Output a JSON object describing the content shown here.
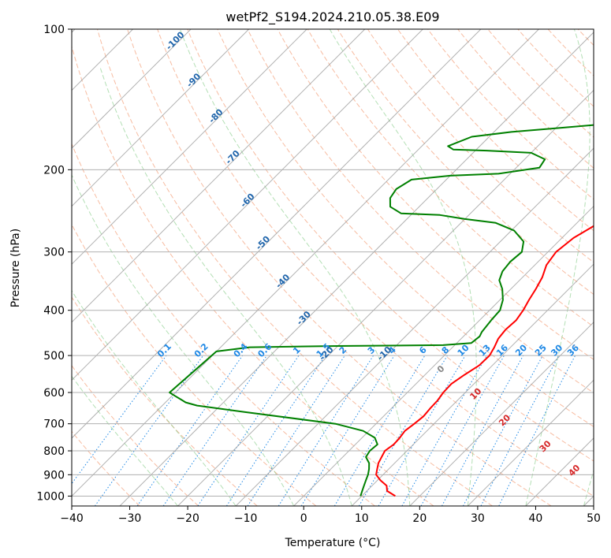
{
  "chart_data": {
    "type": "line",
    "subtype": "skew-t log-p diagram",
    "title": "wetPf2_S194.2024.210.05.38.E09",
    "xlabel": "Temperature (°C)",
    "ylabel": "Pressure (hPa)",
    "xlim": [
      -40,
      50
    ],
    "ylim": [
      1050,
      100
    ],
    "y_scale": "log",
    "x_ticks": [
      -40,
      -30,
      -20,
      -10,
      0,
      10,
      20,
      30,
      40,
      50
    ],
    "y_ticks": [
      1000,
      900,
      800,
      700,
      600,
      500,
      400,
      300,
      200,
      100
    ],
    "grid": true,
    "colors": {
      "temperature": "#ff0000",
      "dewpoint": "#008000",
      "dry_adiabats": "#f4a582",
      "moist_adiabats": "#74c476",
      "mixing_ratio": "#1e88e5",
      "isotherms": "#9e9e9e"
    },
    "series": [
      {
        "points": [
          [
            15.8,
            1000
          ],
          [
            13.5,
            975
          ],
          [
            12.5,
            950
          ],
          [
            10.5,
            925
          ],
          [
            8.8,
            900
          ],
          [
            8.0,
            875
          ],
          [
            7.2,
            850
          ],
          [
            6.7,
            825
          ],
          [
            6.2,
            800
          ],
          [
            6.6,
            775
          ],
          [
            6.5,
            750
          ],
          [
            6.2,
            725
          ],
          [
            6.6,
            700
          ],
          [
            6.9,
            675
          ],
          [
            6.7,
            650
          ],
          [
            6.6,
            625
          ],
          [
            6.2,
            600
          ],
          [
            6.1,
            575
          ],
          [
            6.8,
            550
          ],
          [
            7.7,
            525
          ],
          [
            7.8,
            500
          ],
          [
            7.2,
            480
          ],
          [
            6.4,
            460
          ],
          [
            6.1,
            440
          ],
          [
            6.3,
            420
          ],
          [
            5.8,
            400
          ],
          [
            5.0,
            380
          ],
          [
            4.3,
            360
          ],
          [
            3.4,
            340
          ],
          [
            2.0,
            320
          ],
          [
            1.4,
            300
          ],
          [
            2.0,
            280
          ],
          [
            3.8,
            260
          ],
          [
            6.2,
            240
          ],
          [
            8.5,
            220
          ],
          [
            9.4,
            200
          ],
          [
            11.6,
            180
          ],
          [
            14.5,
            160
          ],
          [
            16.5,
            140
          ],
          [
            18.5,
            125
          ],
          [
            20.5,
            110
          ],
          [
            22.0,
            100
          ]
        ]
      },
      {
        "points": [
          [
            9.8,
            1000
          ],
          [
            9.2,
            975
          ],
          [
            8.6,
            950
          ],
          [
            8.0,
            925
          ],
          [
            7.4,
            900
          ],
          [
            6.6,
            875
          ],
          [
            5.6,
            850
          ],
          [
            4.0,
            825
          ],
          [
            3.6,
            800
          ],
          [
            3.8,
            775
          ],
          [
            2.2,
            750
          ],
          [
            -1.0,
            725
          ],
          [
            -7.0,
            700
          ],
          [
            -25.0,
            660
          ],
          [
            -34.0,
            640
          ],
          [
            -36.5,
            630
          ],
          [
            -38.0,
            620
          ],
          [
            -39.5,
            610
          ],
          [
            -41.0,
            600
          ],
          [
            -40.0,
            490
          ],
          [
            -35.0,
            480
          ],
          [
            -20.0,
            477
          ],
          [
            -2.0,
            475
          ],
          [
            2.5,
            470
          ],
          [
            2.8,
            455
          ],
          [
            2.4,
            445
          ],
          [
            2.0,
            420
          ],
          [
            1.8,
            400
          ],
          [
            0.5,
            380
          ],
          [
            -1.5,
            360
          ],
          [
            -3.5,
            345
          ],
          [
            -4.5,
            330
          ],
          [
            -4.8,
            315
          ],
          [
            -4.5,
            300
          ],
          [
            -6.0,
            285
          ],
          [
            -9.5,
            270
          ],
          [
            -14.0,
            260
          ],
          [
            -20.0,
            255
          ],
          [
            -25.0,
            250
          ],
          [
            -32.0,
            248
          ],
          [
            -35.0,
            240
          ],
          [
            -36.5,
            230
          ],
          [
            -37.0,
            220
          ],
          [
            -36.0,
            210
          ],
          [
            -30.0,
            206
          ],
          [
            -22.0,
            204
          ],
          [
            -16.0,
            198
          ],
          [
            -16.5,
            190
          ],
          [
            -20.0,
            184
          ],
          [
            -28.0,
            182
          ],
          [
            -34.0,
            181
          ],
          [
            -35.5,
            178
          ],
          [
            -33.0,
            170
          ],
          [
            -27.0,
            166
          ],
          [
            -20.0,
            163
          ],
          [
            -13.0,
            160
          ],
          [
            -8.0,
            155
          ],
          [
            -5.0,
            145
          ],
          [
            -3.5,
            135
          ],
          [
            -2.5,
            125
          ],
          [
            -1.0,
            115
          ],
          [
            0.5,
            105
          ],
          [
            0.8,
            100
          ]
        ]
      }
    ],
    "mixing_ratio_labels": [
      "0.1",
      "0.2",
      "0.4",
      "0.6",
      "1",
      "1.5",
      "2",
      "3",
      "4",
      "6",
      "8",
      "10",
      "13",
      "16",
      "20",
      "25",
      "30",
      "36"
    ],
    "mixing_ratio_values": [
      0.1,
      0.2,
      0.4,
      0.6,
      1,
      1.5,
      2,
      3,
      4,
      6,
      8,
      10,
      13,
      16,
      20,
      25,
      30,
      36
    ],
    "dry_adiabat_labels": [
      "-100",
      "-90",
      "-80",
      "-70",
      "-60",
      "-50",
      "-40",
      "-30",
      "-20",
      "-10"
    ],
    "dry_adiabat_values": [
      -100,
      -90,
      -80,
      -70,
      -60,
      -50,
      -40,
      -30,
      -20,
      -10
    ],
    "moist_adiabat_labels": [
      "0",
      "10",
      "20",
      "30",
      "40"
    ],
    "moist_adiabat_values": [
      0,
      10,
      20,
      30,
      40
    ]
  }
}
